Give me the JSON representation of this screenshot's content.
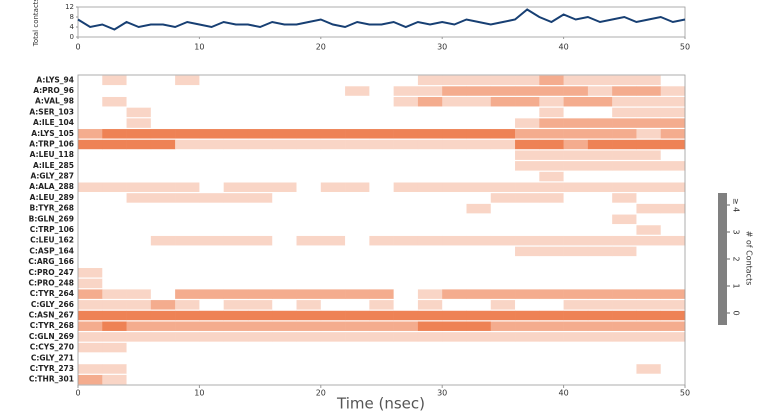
{
  "chart_data": [
    {
      "type": "line",
      "ylabel": "Total contacts",
      "color": "#173f73",
      "x": [
        0,
        1,
        2,
        3,
        4,
        5,
        6,
        7,
        8,
        9,
        10,
        11,
        12,
        13,
        14,
        15,
        16,
        17,
        18,
        19,
        20,
        21,
        22,
        23,
        24,
        25,
        26,
        27,
        28,
        29,
        30,
        31,
        32,
        33,
        34,
        35,
        36,
        37,
        38,
        39,
        40,
        41,
        42,
        43,
        44,
        45,
        46,
        47,
        48,
        49,
        50
      ],
      "values": [
        7,
        4,
        5,
        3,
        6,
        4,
        5,
        5,
        4,
        6,
        5,
        4,
        6,
        5,
        5,
        4,
        6,
        5,
        5,
        6,
        7,
        5,
        4,
        6,
        5,
        5,
        6,
        4,
        6,
        5,
        6,
        5,
        7,
        6,
        5,
        6,
        7,
        11,
        8,
        6,
        9,
        7,
        8,
        6,
        7,
        8,
        6,
        7,
        8,
        6,
        7
      ],
      "xlim": [
        0,
        50
      ],
      "ylim": [
        0,
        12
      ],
      "xticks": [
        0,
        10,
        20,
        30,
        40,
        50
      ],
      "yticks": [
        0,
        4,
        8,
        12
      ]
    },
    {
      "type": "heatmap",
      "xlabel": "Time (nsec)",
      "color": "#e8581c",
      "categories": [
        "A:LYS_94",
        "A:PRO_96",
        "A:VAL_98",
        "A:SER_103",
        "A:ILE_104",
        "A:LYS_105",
        "A:TRP_106",
        "A:LEU_118",
        "A:ILE_285",
        "A:GLY_287",
        "A:ALA_288",
        "A:LEU_289",
        "B:TYR_268",
        "B:GLN_269",
        "C:TRP_106",
        "C:LEU_162",
        "C:ASP_164",
        "C:ARG_166",
        "C:PRO_247",
        "C:PRO_248",
        "C:TYR_264",
        "C:GLY_266",
        "C:ASN_267",
        "C:TYR_268",
        "C:GLN_269",
        "C:CYS_270",
        "C:GLY_271",
        "C:TYR_273",
        "C:THR_301"
      ],
      "bins": [
        0,
        2,
        4,
        6,
        8,
        10,
        12,
        14,
        16,
        18,
        20,
        22,
        24,
        26,
        28,
        30,
        32,
        34,
        36,
        38,
        40,
        42,
        44,
        46,
        48,
        50
      ],
      "values": [
        [
          0,
          1,
          0,
          0,
          1,
          0,
          0,
          0,
          0,
          0,
          0,
          0,
          0,
          0,
          1,
          1,
          1,
          1,
          1,
          2,
          1,
          1,
          1,
          1,
          0
        ],
        [
          0,
          0,
          0,
          0,
          0,
          0,
          0,
          0,
          0,
          0,
          0,
          1,
          0,
          1,
          1,
          2,
          2,
          2,
          2,
          2,
          2,
          1,
          2,
          2,
          1
        ],
        [
          0,
          1,
          0,
          0,
          0,
          0,
          0,
          0,
          0,
          0,
          0,
          0,
          0,
          1,
          2,
          1,
          1,
          2,
          2,
          1,
          2,
          2,
          1,
          1,
          1
        ],
        [
          0,
          0,
          1,
          0,
          0,
          0,
          0,
          0,
          0,
          0,
          0,
          0,
          0,
          0,
          0,
          0,
          0,
          0,
          0,
          1,
          0,
          0,
          1,
          1,
          1
        ],
        [
          0,
          0,
          1,
          0,
          0,
          0,
          0,
          0,
          0,
          0,
          0,
          0,
          0,
          0,
          0,
          0,
          0,
          0,
          1,
          2,
          2,
          2,
          2,
          2,
          2
        ],
        [
          2,
          3,
          3,
          3,
          3,
          3,
          3,
          3,
          3,
          3,
          3,
          3,
          3,
          3,
          3,
          3,
          3,
          3,
          2,
          2,
          2,
          2,
          2,
          1,
          2
        ],
        [
          3,
          3,
          3,
          3,
          1,
          1,
          1,
          1,
          1,
          1,
          1,
          1,
          1,
          1,
          1,
          1,
          1,
          1,
          3,
          3,
          2,
          3,
          3,
          3,
          3
        ],
        [
          0,
          0,
          0,
          0,
          0,
          0,
          0,
          0,
          0,
          0,
          0,
          0,
          0,
          0,
          0,
          0,
          0,
          0,
          1,
          1,
          1,
          1,
          1,
          1,
          0
        ],
        [
          0,
          0,
          0,
          0,
          0,
          0,
          0,
          0,
          0,
          0,
          0,
          0,
          0,
          0,
          0,
          0,
          0,
          0,
          1,
          1,
          1,
          1,
          1,
          1,
          1
        ],
        [
          0,
          0,
          0,
          0,
          0,
          0,
          0,
          0,
          0,
          0,
          0,
          0,
          0,
          0,
          0,
          0,
          0,
          0,
          0,
          1,
          0,
          0,
          0,
          0,
          0
        ],
        [
          1,
          1,
          1,
          1,
          1,
          0,
          1,
          1,
          1,
          0,
          1,
          1,
          0,
          1,
          1,
          1,
          1,
          1,
          1,
          1,
          1,
          1,
          1,
          1,
          1
        ],
        [
          0,
          0,
          1,
          1,
          1,
          1,
          1,
          1,
          0,
          0,
          0,
          0,
          0,
          0,
          0,
          0,
          0,
          1,
          1,
          1,
          0,
          0,
          1,
          0,
          0
        ],
        [
          0,
          0,
          0,
          0,
          0,
          0,
          0,
          0,
          0,
          0,
          0,
          0,
          0,
          0,
          0,
          0,
          1,
          0,
          0,
          0,
          0,
          0,
          0,
          1,
          1
        ],
        [
          0,
          0,
          0,
          0,
          0,
          0,
          0,
          0,
          0,
          0,
          0,
          0,
          0,
          0,
          0,
          0,
          0,
          0,
          0,
          0,
          0,
          0,
          1,
          0,
          0
        ],
        [
          0,
          0,
          0,
          0,
          0,
          0,
          0,
          0,
          0,
          0,
          0,
          0,
          0,
          0,
          0,
          0,
          0,
          0,
          0,
          0,
          0,
          0,
          0,
          1,
          0
        ],
        [
          0,
          0,
          0,
          1,
          1,
          1,
          1,
          1,
          0,
          1,
          1,
          0,
          1,
          1,
          1,
          1,
          1,
          1,
          1,
          1,
          1,
          1,
          1,
          1,
          1
        ],
        [
          0,
          0,
          0,
          0,
          0,
          0,
          0,
          0,
          0,
          0,
          0,
          0,
          0,
          0,
          0,
          0,
          0,
          0,
          1,
          1,
          1,
          1,
          1,
          0,
          0
        ],
        [
          0,
          0,
          0,
          0,
          0,
          0,
          0,
          0,
          0,
          0,
          0,
          0,
          0,
          0,
          0,
          0,
          0,
          0,
          0,
          0,
          0,
          0,
          0,
          0,
          0
        ],
        [
          1,
          0,
          0,
          0,
          0,
          0,
          0,
          0,
          0,
          0,
          0,
          0,
          0,
          0,
          0,
          0,
          0,
          0,
          0,
          0,
          0,
          0,
          0,
          0,
          0
        ],
        [
          1,
          0,
          0,
          0,
          0,
          0,
          0,
          0,
          0,
          0,
          0,
          0,
          0,
          0,
          0,
          0,
          0,
          0,
          0,
          0,
          0,
          0,
          0,
          0,
          0
        ],
        [
          2,
          1,
          1,
          0,
          2,
          2,
          2,
          2,
          2,
          2,
          2,
          2,
          2,
          0,
          1,
          2,
          2,
          2,
          2,
          2,
          2,
          2,
          2,
          2,
          2
        ],
        [
          1,
          1,
          1,
          2,
          1,
          0,
          1,
          1,
          0,
          1,
          0,
          0,
          1,
          0,
          1,
          0,
          0,
          1,
          0,
          0,
          1,
          1,
          1,
          1,
          1
        ],
        [
          3,
          3,
          3,
          3,
          3,
          3,
          3,
          3,
          3,
          3,
          3,
          3,
          3,
          3,
          3,
          3,
          3,
          3,
          3,
          3,
          3,
          3,
          3,
          3,
          3
        ],
        [
          2,
          3,
          2,
          2,
          2,
          2,
          2,
          2,
          2,
          2,
          2,
          2,
          2,
          2,
          3,
          3,
          3,
          2,
          2,
          2,
          2,
          2,
          2,
          2,
          2
        ],
        [
          1,
          1,
          1,
          1,
          1,
          1,
          1,
          1,
          1,
          1,
          1,
          1,
          1,
          1,
          1,
          1,
          1,
          1,
          1,
          1,
          1,
          1,
          1,
          1,
          1
        ],
        [
          1,
          1,
          0,
          0,
          0,
          0,
          0,
          0,
          0,
          0,
          0,
          0,
          0,
          0,
          0,
          0,
          0,
          0,
          0,
          0,
          0,
          0,
          0,
          0,
          0
        ],
        [
          0,
          0,
          0,
          0,
          0,
          0,
          0,
          0,
          0,
          0,
          0,
          0,
          0,
          0,
          0,
          0,
          0,
          0,
          0,
          0,
          0,
          0,
          0,
          0,
          0
        ],
        [
          1,
          1,
          0,
          0,
          0,
          0,
          0,
          0,
          0,
          0,
          0,
          0,
          0,
          0,
          0,
          0,
          0,
          0,
          0,
          0,
          0,
          0,
          0,
          1,
          0
        ],
        [
          2,
          1,
          0,
          0,
          0,
          0,
          0,
          0,
          0,
          0,
          0,
          0,
          0,
          0,
          0,
          0,
          0,
          0,
          0,
          0,
          0,
          0,
          0,
          0,
          0
        ]
      ],
      "xlim": [
        0,
        50
      ],
      "xticks": [
        0,
        10,
        20,
        30,
        40,
        50
      ],
      "colorbar_lim": [
        0,
        4
      ],
      "colorbar_color": "#808080",
      "colorbar_label": "# of Contacts",
      "colorbar_ticks": [
        0,
        1,
        2,
        3,
        {
          "value": 4,
          "label": "≥ 4"
        }
      ]
    }
  ]
}
